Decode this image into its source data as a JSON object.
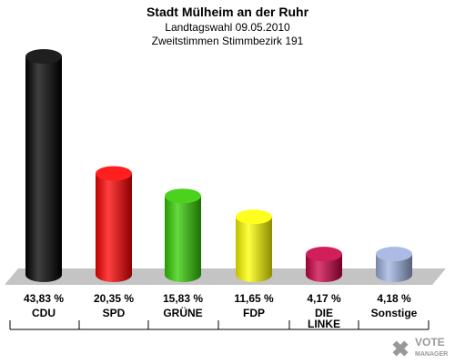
{
  "chart_data": {
    "type": "bar",
    "title": "Stadt Mülheim an der Ruhr",
    "subtitle_lines": [
      "Landtagswahl 09.05.2010",
      "Zweitstimmen Stimmbezirk 191"
    ],
    "categories": [
      "CDU",
      "SPD",
      "GRÜNE",
      "FDP",
      "DIE LINKE",
      "Sonstige"
    ],
    "category_label_lines": [
      [
        "CDU"
      ],
      [
        "SPD"
      ],
      [
        "GRÜNE"
      ],
      [
        "FDP"
      ],
      [
        "DIE",
        "LINKE"
      ],
      [
        "Sonstige"
      ]
    ],
    "values": [
      43.83,
      20.35,
      15.83,
      11.65,
      4.17,
      4.18
    ],
    "value_labels": [
      "43,83 %",
      "20,35 %",
      "15,83 %",
      "11,65 %",
      "4,17 %",
      "4,18 %"
    ],
    "colors": [
      "#000000",
      "#ff0000",
      "#33cc00",
      "#ffff00",
      "#cc0044",
      "#9fb2e0"
    ],
    "unit": "%",
    "grid": false
  },
  "logo": {
    "line1": "VOTE",
    "line2": "MANAGER"
  }
}
